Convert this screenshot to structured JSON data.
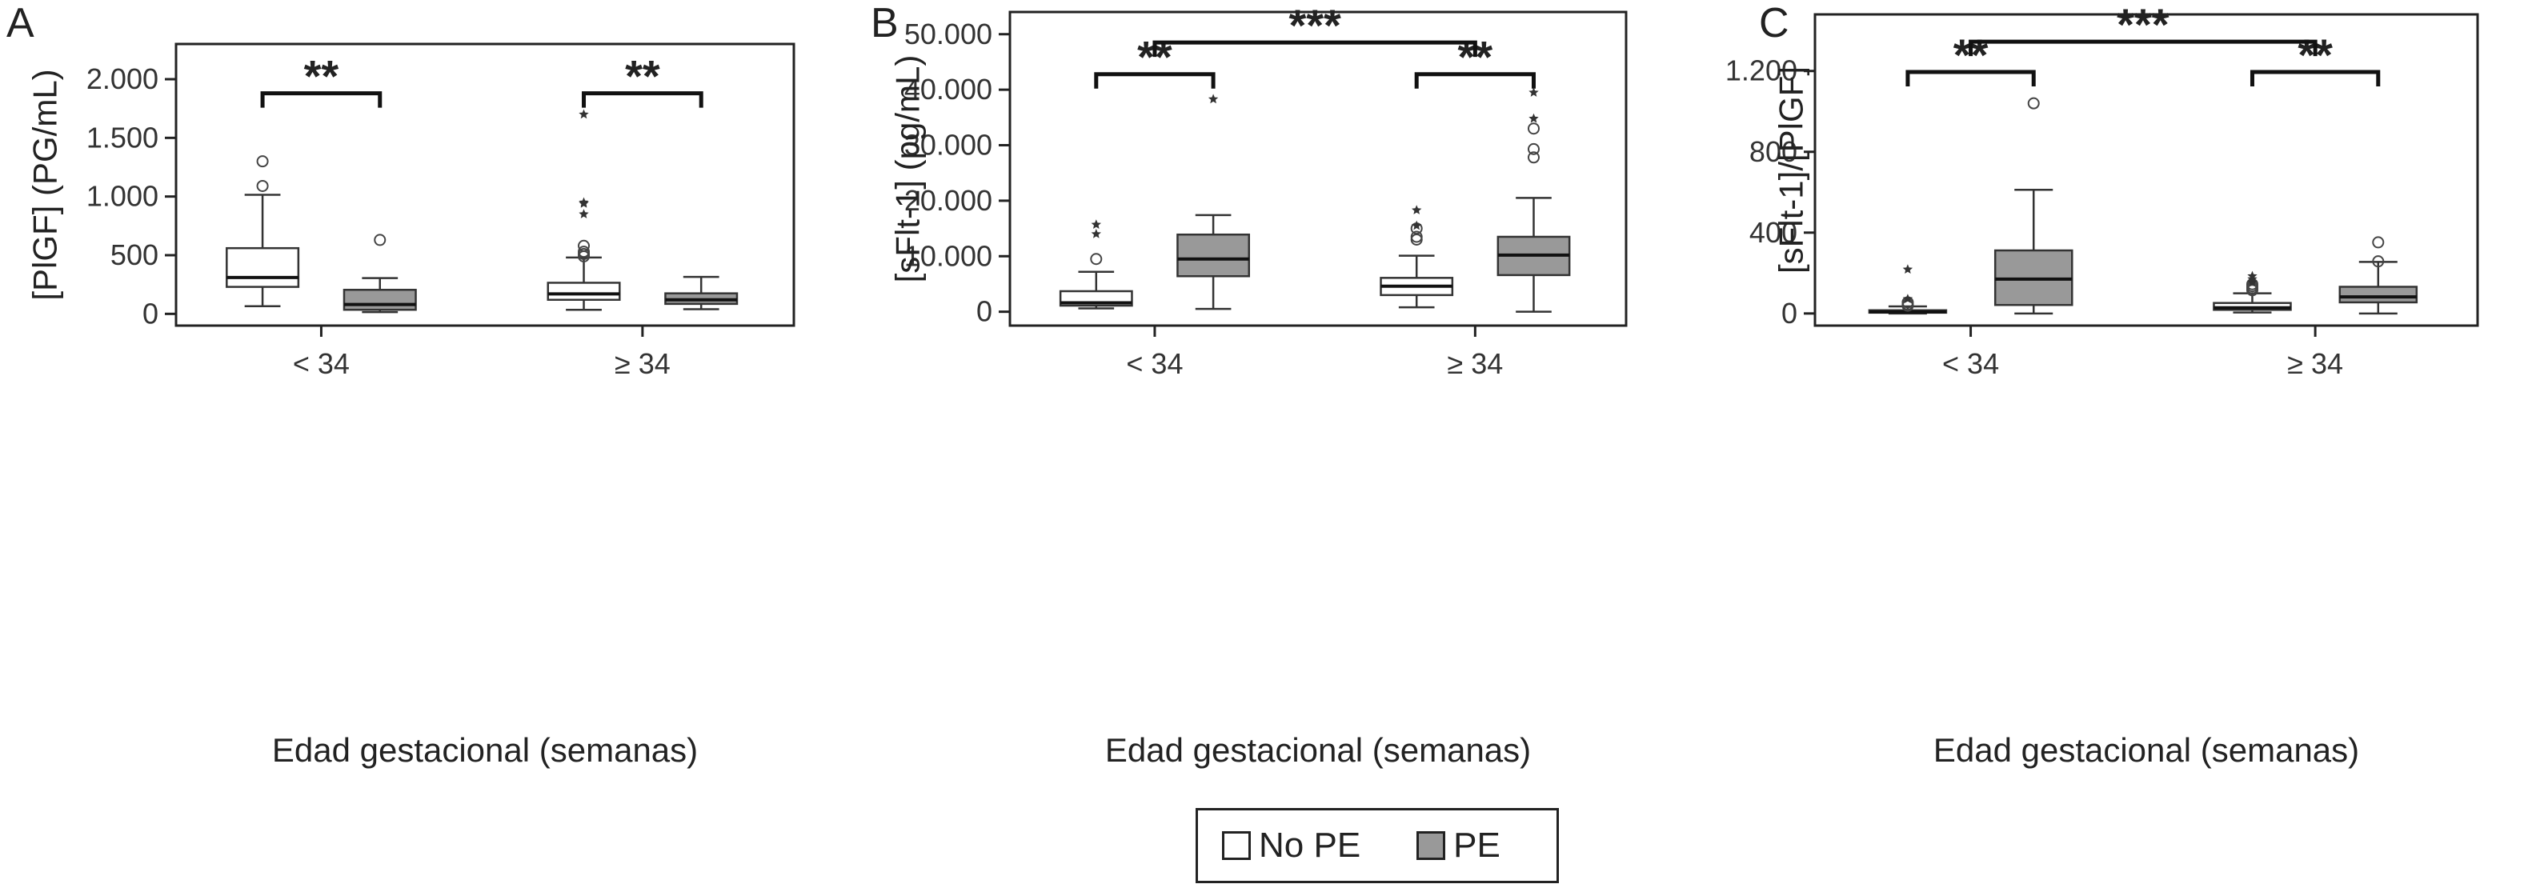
{
  "colors": {
    "no_pe": "#ffffff",
    "pe": "#999999",
    "frame": "#222222",
    "whisker": "#333333"
  },
  "legend": {
    "items": [
      {
        "label": "No PE",
        "color": "#ffffff"
      },
      {
        "label": "PE",
        "color": "#999999"
      }
    ]
  },
  "chart_data": [
    {
      "type": "box",
      "panel_label": "A",
      "xlabel": "Edad gestacional (semanas)",
      "ylabel": "[PlGF] (PG/mL)",
      "categories": [
        "< 34",
        "≥ 34"
      ],
      "ylim": [
        -100,
        2300
      ],
      "yticks": [
        0,
        500,
        1000,
        1500,
        2000
      ],
      "ytick_labels": [
        "0",
        "500",
        "1.000",
        "1.500",
        "2.000"
      ],
      "series": [
        {
          "name": "No PE",
          "boxes": [
            {
              "min": 65,
              "q1": 230,
              "median": 310,
              "q3": 560,
              "max": 1015,
              "outliers_circle": [
                1090,
                1300
              ],
              "outliers_star": []
            },
            {
              "min": 35,
              "q1": 120,
              "median": 170,
              "q3": 265,
              "max": 480,
              "outliers_circle": [
                490,
                510,
                530,
                580
              ],
              "outliers_star": [
                850,
                940,
                950,
                1700
              ]
            }
          ]
        },
        {
          "name": "PE",
          "boxes": [
            {
              "min": 15,
              "q1": 35,
              "median": 80,
              "q3": 205,
              "max": 305,
              "outliers_circle": [
                630
              ],
              "outliers_star": []
            },
            {
              "min": 40,
              "q1": 85,
              "median": 120,
              "q3": 175,
              "max": 315,
              "outliers_circle": [],
              "outliers_star": []
            }
          ]
        }
      ],
      "brackets": [
        {
          "from": "< 34|No PE",
          "to": "< 34|PE",
          "y": 1880,
          "label": "**"
        },
        {
          "from": "≥ 34|No PE",
          "to": "≥ 34|PE",
          "y": 1880,
          "label": "**"
        }
      ]
    },
    {
      "type": "box",
      "panel_label": "B",
      "xlabel": "Edad gestacional (semanas)",
      "ylabel": "[sFlt-1] (pg/mL)",
      "categories": [
        "< 34",
        "≥ 34"
      ],
      "ylim": [
        -2500,
        54000
      ],
      "yticks": [
        0,
        10000,
        20000,
        30000,
        40000,
        50000
      ],
      "ytick_labels": [
        "0",
        "10.000",
        "20.000",
        "30.000",
        "40.000",
        "50.000"
      ],
      "series": [
        {
          "name": "No PE",
          "boxes": [
            {
              "min": 600,
              "q1": 1100,
              "median": 1600,
              "q3": 3700,
              "max": 7200,
              "outliers_circle": [
                9500
              ],
              "outliers_star": [
                14000,
                15700
              ]
            },
            {
              "min": 800,
              "q1": 3000,
              "median": 4600,
              "q3": 6100,
              "max": 10100,
              "outliers_circle": [
                13000,
                13500,
                15000
              ],
              "outliers_star": [
                15500,
                18300
              ]
            }
          ]
        },
        {
          "name": "PE",
          "boxes": [
            {
              "min": 500,
              "q1": 6400,
              "median": 9500,
              "q3": 13900,
              "max": 17400,
              "outliers_circle": [],
              "outliers_star": [
                38300
              ]
            },
            {
              "min": 0,
              "q1": 6600,
              "median": 10200,
              "q3": 13500,
              "max": 20500,
              "outliers_circle": [
                27800,
                29300,
                33000
              ],
              "outliers_star": [
                34800,
                39500
              ]
            }
          ]
        }
      ],
      "brackets": [
        {
          "from": "< 34|No PE",
          "to": "< 34|PE",
          "y": 42800,
          "label": "**"
        },
        {
          "from": "≥ 34|No PE",
          "to": "≥ 34|PE",
          "y": 42800,
          "label": "**"
        },
        {
          "from": "< 34|center",
          "to": "≥ 34|center",
          "y": 48500,
          "label": "***"
        }
      ]
    },
    {
      "type": "box",
      "panel_label": "C",
      "xlabel": "Edad gestacional (semanas)",
      "ylabel": "[sFlt-1]/[PlGF]",
      "categories": [
        "< 34",
        "≥ 34"
      ],
      "ylim": [
        -60,
        1480
      ],
      "yticks": [
        0,
        400,
        800,
        1200
      ],
      "ytick_labels": [
        "0",
        "400",
        "800",
        "1.200"
      ],
      "series": [
        {
          "name": "No PE",
          "boxes": [
            {
              "min": 0,
              "q1": 4,
              "median": 8,
              "q3": 16,
              "max": 35,
              "outliers_circle": [
                38,
                45,
                55
              ],
              "outliers_star": [
                72,
                218
              ]
            },
            {
              "min": 5,
              "q1": 18,
              "median": 28,
              "q3": 52,
              "max": 100,
              "outliers_circle": [
                115,
                125,
                135,
                145
              ],
              "outliers_star": [
                155,
                170,
                185
              ]
            }
          ]
        },
        {
          "name": "PE",
          "boxes": [
            {
              "min": 0,
              "q1": 42,
              "median": 170,
              "q3": 312,
              "max": 612,
              "outliers_circle": [
                1040
              ],
              "outliers_star": []
            },
            {
              "min": 0,
              "q1": 55,
              "median": 82,
              "q3": 132,
              "max": 255,
              "outliers_circle": [
                258,
                352
              ],
              "outliers_star": []
            }
          ]
        }
      ],
      "brackets": [
        {
          "from": "< 34|No PE",
          "to": "< 34|PE",
          "y": 1195,
          "label": "**"
        },
        {
          "from": "≥ 34|No PE",
          "to": "≥ 34|PE",
          "y": 1195,
          "label": "**"
        },
        {
          "from": "< 34|center",
          "to": "≥ 34|center",
          "y": 1345,
          "label": "***"
        }
      ]
    }
  ]
}
